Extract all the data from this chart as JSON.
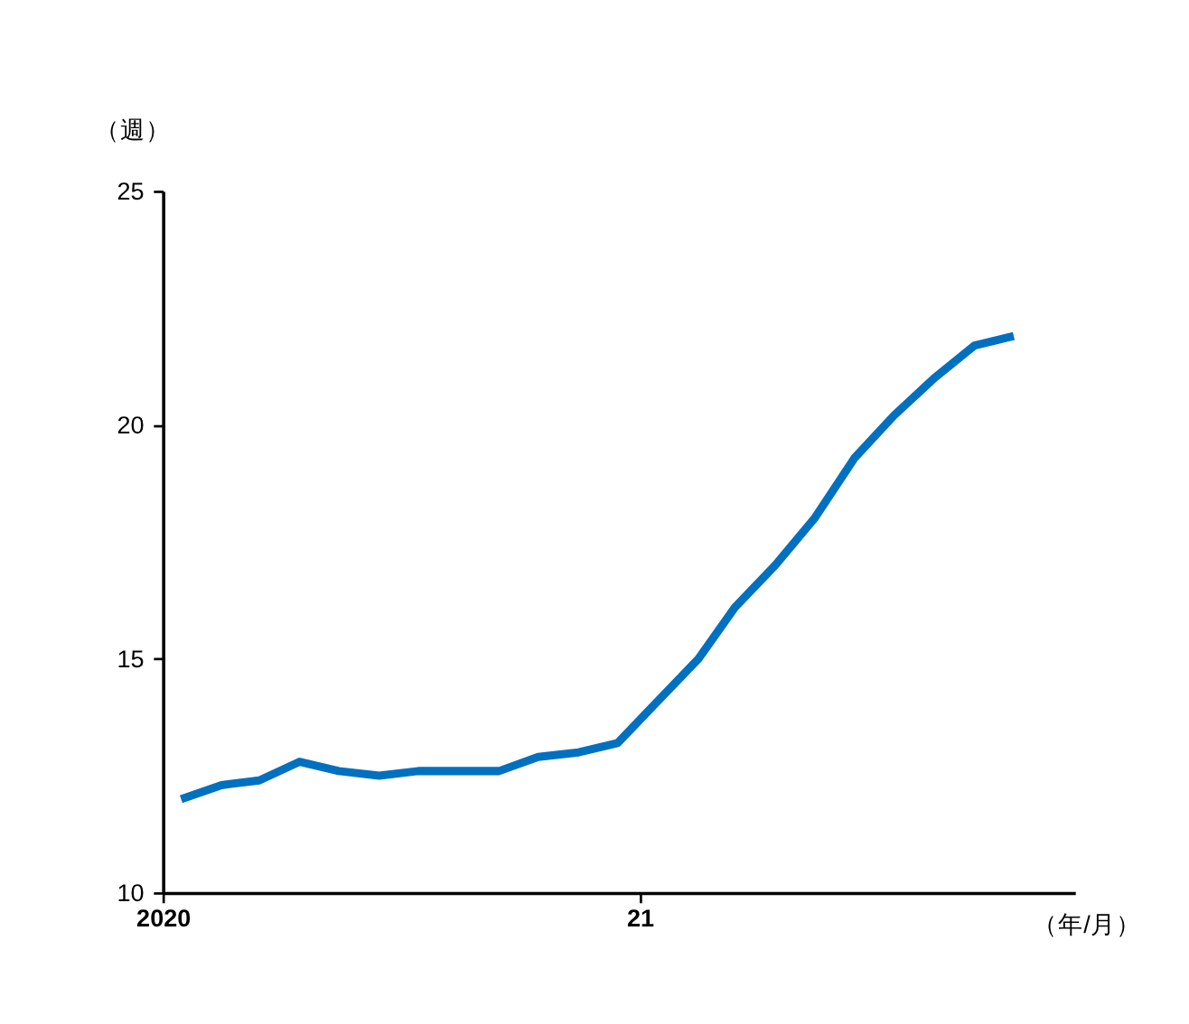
{
  "chart_data": {
    "type": "line",
    "ylabel": "（週）",
    "xlabel": "（年/月）",
    "x": [
      "2020-01-15",
      "2020-02-15",
      "2020-03-15",
      "2020-04-15",
      "2020-05-15",
      "2020-06-15",
      "2020-07-15",
      "2020-08-15",
      "2020-09-15",
      "2020-10-15",
      "2020-11-15",
      "2020-12-15",
      "2021-01-15",
      "2021-02-15",
      "2021-03-15",
      "2021-04-15",
      "2021-05-15",
      "2021-06-15",
      "2021-07-15",
      "2021-08-15",
      "2021-09-15",
      "2021-10-15"
    ],
    "series": [
      {
        "color": "#0070c0",
        "values": [
          12.0,
          12.3,
          12.4,
          12.8,
          12.6,
          12.5,
          12.6,
          12.6,
          12.6,
          12.9,
          13.0,
          13.2,
          14.1,
          15.0,
          16.1,
          17.0,
          18.0,
          19.3,
          20.2,
          21.0,
          21.7,
          21.9
        ]
      }
    ],
    "xlim": [
      "2020-01-01",
      "2021-12-01"
    ],
    "xticks": [
      {
        "value": "2020-01-01",
        "label": "2020"
      },
      {
        "value": "2021-01-01",
        "label": "21"
      }
    ],
    "ylim": [
      10,
      25
    ],
    "yticks": [
      10,
      15,
      20,
      25
    ],
    "grid": false,
    "marker": "none",
    "line_style": "solid"
  }
}
